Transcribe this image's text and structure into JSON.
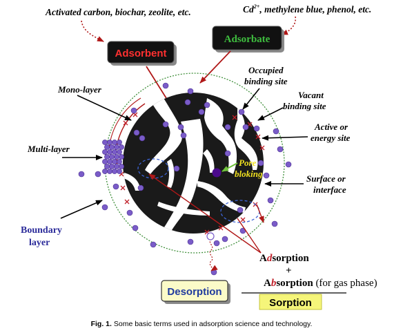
{
  "labels": {
    "adsorbent_examples": "Activated carbon, biochar, zeolite, etc.",
    "adsorbate_examples_sub": "Cd",
    "adsorbate_examples_sup": "2+",
    "adsorbate_examples_rest": ", methylene blue, phenol, etc.",
    "adsorbent": "Adsorbent",
    "adsorbate": "Adsorbate",
    "mono_layer": "Mono-layer",
    "multi_layer": "Multi-layer",
    "boundary_layer_1": "Boundary",
    "boundary_layer_2": "layer",
    "occupied_1": "Occupied",
    "occupied_2": "binding site",
    "vacant_1": "Vacant",
    "vacant_2": "binding site",
    "active_1": "Active or",
    "active_2": "energy site",
    "surface_1": "Surface or",
    "surface_2": "interface",
    "pore_1": "Pore",
    "pore_2": "bloking",
    "adsorption_a": "A",
    "adsorption_d": "d",
    "adsorption_rest": "sorption",
    "plus": "+",
    "absorption_a": "A",
    "absorption_b": "b",
    "absorption_rest": "sorption",
    "absorption_note": " (for gas phase)",
    "desorption": "Desorption",
    "sorption": "Sorption",
    "caption_bold": "Fig. 1.",
    "caption_text": " Some basic terms used in adsorption science and technology."
  },
  "colors": {
    "particle": "#7a5cc8",
    "particle_stroke": "#4a2f8f",
    "adsorbent_body": "#1a1a1a",
    "dotted_circle": "#3f8f3a",
    "pore_label": "#f0e020",
    "pore_dot": "#4b0a8c",
    "boundary_label": "#2b2b9a",
    "accent_red": "#c0202a",
    "adsorbate_text": "#3fbf3f",
    "adsorbent_text": "#ff3030",
    "desorption_fill": "#fbfbc8",
    "desorption_text": "#1f3a9e",
    "sorption_fill": "#f5f57a",
    "dashed_blue": "#3d64d6"
  }
}
